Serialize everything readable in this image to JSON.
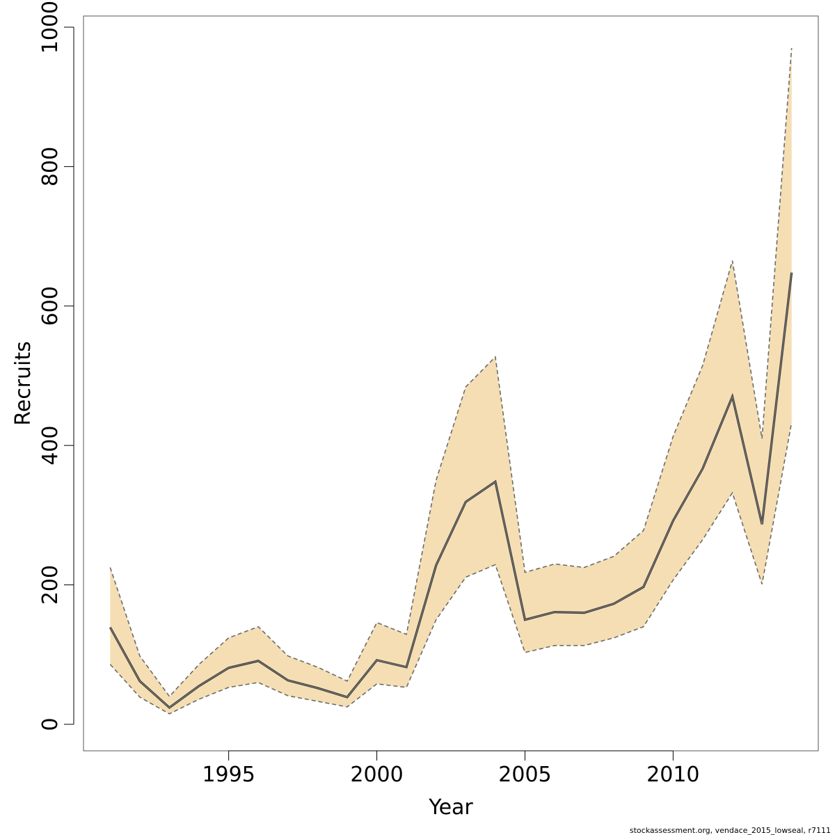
{
  "chart_data": {
    "type": "line",
    "title": "",
    "xlabel": "Year",
    "ylabel": "Recruits",
    "xlim": [
      1990.1,
      2014.9
    ],
    "ylim": [
      -38,
      1016
    ],
    "x_ticks": [
      1995,
      2000,
      2005,
      2010
    ],
    "x_tick_labels": [
      "1995",
      "2000",
      "2005",
      "2010"
    ],
    "y_ticks": [
      0,
      200,
      400,
      600,
      800,
      1000
    ],
    "y_tick_labels": [
      "0",
      "200",
      "400",
      "600",
      "800",
      "1000"
    ],
    "grid": false,
    "legend": "none",
    "years": [
      1991,
      1992,
      1993,
      1994,
      1995,
      1996,
      1997,
      1998,
      1999,
      2000,
      2001,
      2002,
      2003,
      2004,
      2005,
      2006,
      2007,
      2008,
      2009,
      2010,
      2011,
      2012,
      2013,
      2014
    ],
    "series": [
      {
        "role": "estimate",
        "values": [
          139,
          62,
          24,
          55,
          81,
          91,
          63,
          52,
          39,
          92,
          82,
          228,
          319,
          348,
          150,
          161,
          160,
          173,
          197,
          292,
          367,
          470,
          287,
          648
        ]
      },
      {
        "role": "upper",
        "values": [
          225,
          98,
          40,
          86,
          124,
          140,
          98,
          82,
          62,
          146,
          129,
          350,
          484,
          527,
          218,
          230,
          225,
          241,
          278,
          413,
          515,
          665,
          410,
          970
        ]
      },
      {
        "role": "lower",
        "values": [
          86,
          39,
          15,
          36,
          53,
          60,
          41,
          33,
          25,
          58,
          53,
          150,
          211,
          229,
          103,
          113,
          113,
          124,
          140,
          207,
          265,
          332,
          201,
          433
        ]
      }
    ],
    "colors": {
      "band_fill": "#F5DEB3",
      "band_edge": "#6b6b6b",
      "line": "#3a3a3a",
      "axis": "#000000",
      "box": "#555555"
    }
  },
  "footer": {
    "credit": "stockassessment.org, vendace_2015_lowseal, r7111"
  }
}
